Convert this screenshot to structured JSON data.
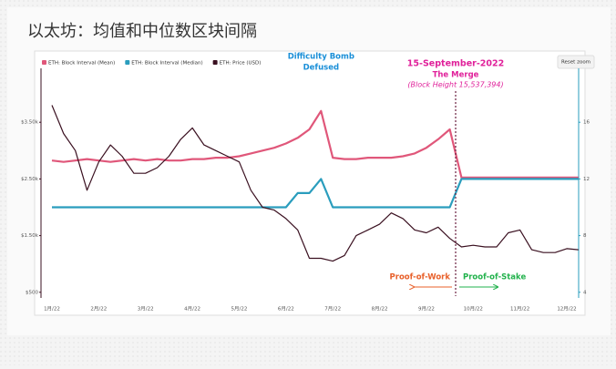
{
  "chart_data": {
    "type": "line",
    "title": "以太坊：均值和中位数区块间隔",
    "reset_button": "Reset zoom",
    "categories": [
      "1月/22",
      null,
      null,
      null,
      "2月/22",
      null,
      null,
      null,
      "3月/22",
      null,
      null,
      null,
      "4月/22",
      null,
      null,
      null,
      "5月/22",
      null,
      null,
      null,
      "6月/22",
      null,
      null,
      null,
      "7月/22",
      null,
      null,
      null,
      "8月/22",
      null,
      null,
      null,
      "9月/22",
      null,
      null,
      null,
      "10月/22",
      null,
      null,
      null,
      "11月/22",
      null,
      null,
      null,
      "12月/22",
      null
    ],
    "series": [
      {
        "name": "ETH: Block Interval (Mean)",
        "color": "#e0577a",
        "axis": "y2",
        "values": [
          13.3,
          13.2,
          13.3,
          13.4,
          13.3,
          13.2,
          13.3,
          13.4,
          13.3,
          13.4,
          13.3,
          13.3,
          13.4,
          13.4,
          13.5,
          13.5,
          13.6,
          13.8,
          14.0,
          14.2,
          14.5,
          14.9,
          15.5,
          16.8,
          13.5,
          13.4,
          13.4,
          13.5,
          13.5,
          13.5,
          13.6,
          13.8,
          14.2,
          14.8,
          15.5,
          12.1,
          12.1,
          12.1,
          12.1,
          12.1,
          12.1,
          12.1,
          12.1,
          12.1,
          12.1,
          12.1
        ]
      },
      {
        "name": "ETH: Block Interval (Median)",
        "color": "#2a9dbd",
        "axis": "y2",
        "values": [
          10,
          10,
          10,
          10,
          10,
          10,
          10,
          10,
          10,
          10,
          10,
          10,
          10,
          10,
          10,
          10,
          10,
          10,
          10,
          10,
          10,
          11,
          11,
          12,
          10,
          10,
          10,
          10,
          10,
          10,
          10,
          10,
          10,
          10,
          10,
          12,
          12,
          12,
          12,
          12,
          12,
          12,
          12,
          12,
          12,
          12
        ]
      },
      {
        "name": "ETH: Price (USD)",
        "color": "#3a1020",
        "values": [
          3800,
          3300,
          3000,
          2300,
          2800,
          3100,
          2900,
          2600,
          2600,
          2700,
          2900,
          3200,
          3400,
          3100,
          3000,
          2900,
          2800,
          2300,
          2000,
          1950,
          1800,
          1600,
          1100,
          1100,
          1050,
          1150,
          1500,
          1600,
          1700,
          1900,
          1800,
          1600,
          1550,
          1650,
          1450,
          1300,
          1330,
          1300,
          1300,
          1550,
          1600,
          1250,
          1200,
          1200,
          1270,
          1250
        ]
      }
    ],
    "ylim": [
      400,
      4500
    ],
    "yticks": [
      {
        "value": 500,
        "label": "$500"
      },
      {
        "value": 1500,
        "label": "$1.50k"
      },
      {
        "value": 2500,
        "label": "$2.50k"
      },
      {
        "value": 3500,
        "label": "$3.50k"
      }
    ],
    "y2lim": [
      3.6,
      20
    ],
    "y2ticks": [
      4,
      8,
      12,
      16
    ],
    "annotations": {
      "bomb": [
        "Difficulty Bomb",
        "Defused"
      ],
      "merge": [
        "15-September-2022",
        "The Merge",
        "(Block Height 15,537,394)"
      ],
      "pow": "Proof-of-Work",
      "pos": "Proof-of-Stake"
    }
  }
}
